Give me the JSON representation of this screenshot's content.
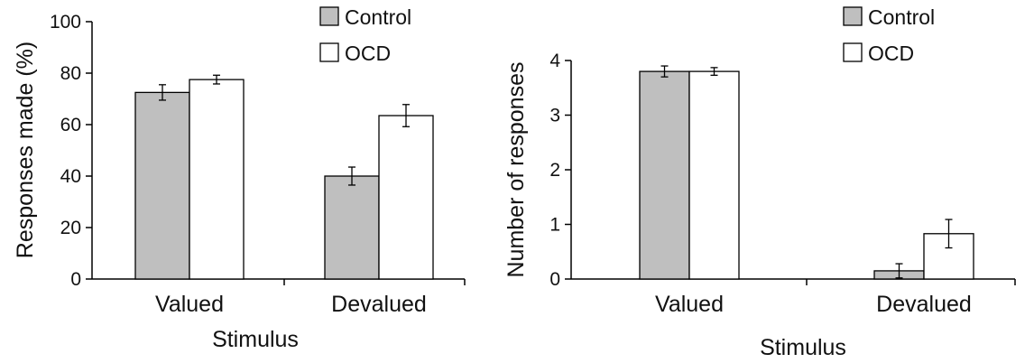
{
  "colors": {
    "control": "#bfbfbf",
    "ocd": "#ffffff",
    "stroke": "#000000"
  },
  "chart_data": [
    {
      "type": "bar",
      "categories": [
        "Valued",
        "Devalued"
      ],
      "series": [
        {
          "name": "Control",
          "values": [
            72.5,
            40
          ],
          "errors": [
            3,
            3.5
          ]
        },
        {
          "name": "OCD",
          "values": [
            77.5,
            63.5
          ],
          "errors": [
            1.7,
            4.3
          ]
        }
      ],
      "xlabel": "Stimulus",
      "ylabel": "Responses made (%)",
      "ylim": [
        0,
        100
      ],
      "yticks": [
        "0",
        "20",
        "40",
        "60",
        "80",
        "100"
      ],
      "legend": "top-right",
      "grid": false
    },
    {
      "type": "bar",
      "categories": [
        "Valued",
        "Devalued"
      ],
      "series": [
        {
          "name": "Control",
          "values": [
            3.8,
            0.15
          ],
          "errors": [
            0.1,
            0.13
          ]
        },
        {
          "name": "OCD",
          "values": [
            3.8,
            0.83
          ],
          "errors": [
            0.07,
            0.26
          ]
        }
      ],
      "xlabel": "Stimulus",
      "ylabel": "Number of responses",
      "ylim": [
        0,
        4
      ],
      "yticks": [
        "0",
        "1",
        "2",
        "3",
        "4"
      ],
      "legend": "top-right",
      "grid": false
    }
  ]
}
